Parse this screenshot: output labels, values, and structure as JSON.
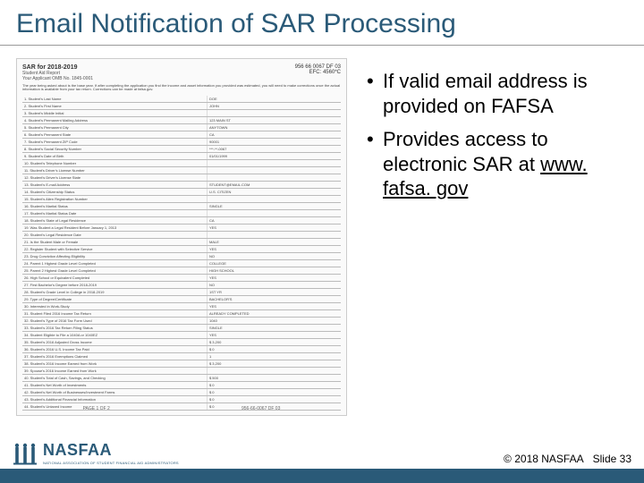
{
  "title": "Email Notification of SAR Processing",
  "sar": {
    "heading": "SAR for 2018-2019",
    "subheading": "Student Aid Report",
    "applicant": "Your Applicant OMB No. 1845-0001",
    "topRight1": "956 66 0067   DF 03",
    "topRight2": "EFC:   4560*C",
    "intro": "The year being asked about is the base year. If after completing the application you find the income and asset information you provided was estimated, you will need to make corrections once the actual information is available from your tax return. Corrections can be made at fafsa.gov.",
    "rows": [
      [
        "1. Student's Last Name",
        "DOE"
      ],
      [
        "2. Student's First Name",
        "JOHN"
      ],
      [
        "3. Student's Middle Initial",
        ""
      ],
      [
        "4. Student's Permanent Mailing Address",
        "123 MAIN ST"
      ],
      [
        "5. Student's Permanent City",
        "ANYTOWN"
      ],
      [
        "6. Student's Permanent State",
        "CA"
      ],
      [
        "7. Student's Permanent ZIP Code",
        "90001"
      ],
      [
        "8. Student's Social Security Number",
        "***-**-0067"
      ],
      [
        "9. Student's Date of Birth",
        "01/01/1999"
      ],
      [
        "10. Student's Telephone Number",
        ""
      ],
      [
        "11. Student's Driver's License Number",
        ""
      ],
      [
        "12. Student's Driver's License State",
        ""
      ],
      [
        "13. Student's E-mail Address",
        "STUDENT@EMAIL.COM"
      ],
      [
        "14. Student's Citizenship Status",
        "U.S. CITIZEN"
      ],
      [
        "15. Student's Alien Registration Number",
        ""
      ],
      [
        "16. Student's Marital Status",
        "SINGLE"
      ],
      [
        "17. Student's Marital Status Date",
        ""
      ],
      [
        "18. Student's State of Legal Residence",
        "CA"
      ],
      [
        "19. Was Student a Legal Resident Before January 1, 2013",
        "YES"
      ],
      [
        "20. Student's Legal Residence Date",
        ""
      ],
      [
        "21. Is the Student Male or Female",
        "MALE"
      ],
      [
        "22. Register Student with Selective Service",
        "YES"
      ],
      [
        "23. Drug Conviction Affecting Eligibility",
        "NO"
      ],
      [
        "24. Parent 1 Highest Grade Level Completed",
        "COLLEGE"
      ],
      [
        "25. Parent 2 Highest Grade Level Completed",
        "HIGH SCHOOL"
      ],
      [
        "26. High School or Equivalent Completed",
        "YES"
      ],
      [
        "27. First Bachelor's Degree before 2018-2019",
        "NO"
      ],
      [
        "28. Student's Grade Level in College in 2018-2019",
        "1ST YR"
      ],
      [
        "29. Type of Degree/Certificate",
        "BACHELOR'S"
      ],
      [
        "30. Interested in Work-Study",
        "YES"
      ],
      [
        "31. Student Filed 2016 Income Tax Return",
        "ALREADY COMPLETED"
      ],
      [
        "32. Student's Type of 2016 Tax Form Used",
        "1040"
      ],
      [
        "33. Student's 2016 Tax Return Filing Status",
        "SINGLE"
      ],
      [
        "34. Student Eligible to File a 1040A or 1040EZ",
        "YES"
      ],
      [
        "35. Student's 2016 Adjusted Gross Income",
        "$ 3,200"
      ],
      [
        "36. Student's 2016 U.S. Income Tax Paid",
        "$ 0"
      ],
      [
        "37. Student's 2016 Exemptions Claimed",
        "1"
      ],
      [
        "38. Student's 2016 Income Earned from Work",
        "$ 3,200"
      ],
      [
        "39. Spouse's 2016 Income Earned from Work",
        ""
      ],
      [
        "40. Student's Total of Cash, Savings, and Checking",
        "$ 500"
      ],
      [
        "41. Student's Net Worth of Investments",
        "$ 0"
      ],
      [
        "42. Student's Net Worth of Businesses/Investment Farms",
        "$ 0"
      ],
      [
        "43. Student's Additional Financial Information",
        "$ 0"
      ],
      [
        "44. Student's Untaxed Income",
        "$ 0"
      ]
    ],
    "footLeft": "PAGE 1 OF 2",
    "footRight": "956-66-0067 DF 03"
  },
  "bullets": {
    "item1a": "If valid email address is provided on FAFSA",
    "item2a": "Provides access to electronic SAR at ",
    "item2link": "www. fafsa. gov"
  },
  "footer": {
    "logoText": "NASFAA",
    "logoSub": "NATIONAL ASSOCIATION OF STUDENT FINANCIAL AID ADMINISTRATORS",
    "copyright": "© 2018 NASFAA",
    "slide": "Slide 33"
  },
  "colors": {
    "accent": "#2a5a78"
  }
}
